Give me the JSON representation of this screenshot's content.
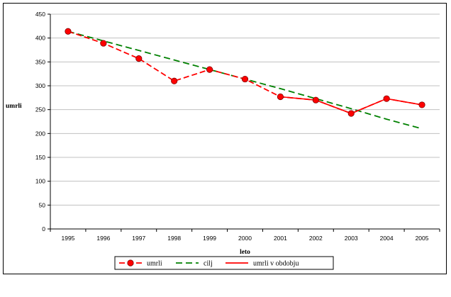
{
  "chart_data": {
    "type": "line",
    "categories": [
      "1995",
      "1996",
      "1997",
      "1998",
      "1999",
      "2000",
      "2001",
      "2002",
      "2003",
      "2004",
      "2005"
    ],
    "ylim": [
      0,
      450
    ],
    "yticks": [
      0,
      50,
      100,
      150,
      200,
      250,
      300,
      350,
      400,
      450
    ],
    "ylabel": "umrli",
    "xlabel": "leto",
    "grid": true,
    "legend_position": "bottom",
    "series": [
      {
        "name": "umrli",
        "style": "dashed",
        "color": "#ff0000",
        "markers": true,
        "values": [
          414,
          389,
          357,
          310,
          334,
          314,
          277,
          270,
          242,
          273,
          260
        ]
      },
      {
        "name": "cilj",
        "style": "dashed",
        "color": "#008000",
        "markers": false,
        "values": [
          414,
          394,
          374,
          354,
          334,
          314,
          294,
          273,
          252,
          230,
          210
        ]
      },
      {
        "name": "umrli v obdobju",
        "style": "solid",
        "color": "#ff0000",
        "markers": false,
        "values": [
          null,
          null,
          null,
          null,
          null,
          null,
          277,
          270,
          242,
          273,
          260
        ]
      }
    ]
  }
}
